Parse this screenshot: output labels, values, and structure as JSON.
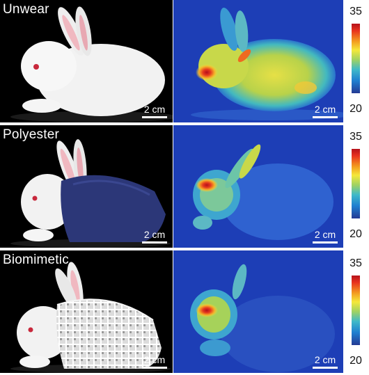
{
  "rows": [
    {
      "label": "Unwear",
      "scale_bar_left": "2 cm",
      "scale_bar_right": "2 cm"
    },
    {
      "label": "Polyester",
      "scale_bar_left": "2 cm",
      "scale_bar_right": "2 cm"
    },
    {
      "label": "Biomimetic",
      "scale_bar_left": "2 cm",
      "scale_bar_right": "2 cm"
    }
  ],
  "colorbar": {
    "max_label": "35",
    "min_label": "20"
  },
  "colors": {
    "photo_background": "#000000",
    "thermal_background": "#1d3eb6",
    "polyester_fabric": "#2c3778",
    "biomimetic_fabric": "#e8e8e8",
    "hot_spot": "#d4141c"
  }
}
